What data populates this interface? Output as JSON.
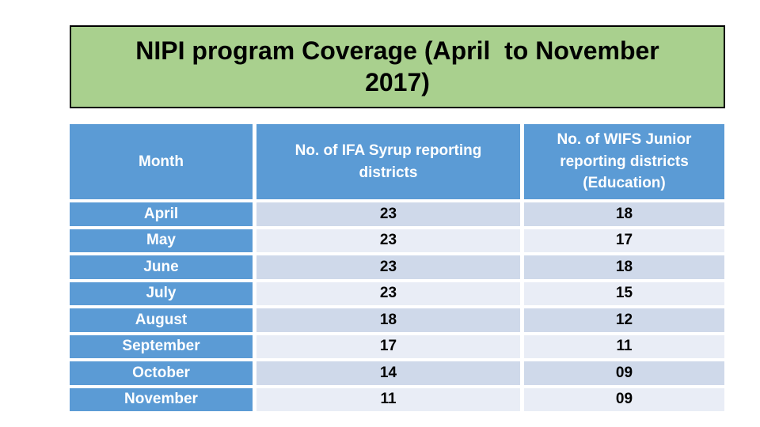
{
  "theme": {
    "page-bg": "#ffffff",
    "title-bg": "#a9d08e",
    "title-border": "#000000",
    "title-text": "#000000",
    "table-blue": "#5b9bd5",
    "row-dark": "#cfd9ea",
    "row-light": "#e9edf6"
  },
  "title": {
    "lines": [
      "NIPI program Coverage (April  to November",
      "2017)"
    ]
  },
  "table": {
    "columns": [
      "Month",
      "No. of IFA Syrup reporting districts",
      "No. of WIFS Junior reporting districts (Education)"
    ],
    "rows": [
      {
        "month": "April",
        "ifa": "23",
        "wifs": "18"
      },
      {
        "month": "May",
        "ifa": "23",
        "wifs": "17"
      },
      {
        "month": "June",
        "ifa": "23",
        "wifs": "18"
      },
      {
        "month": "July",
        "ifa": "23",
        "wifs": "15"
      },
      {
        "month": "August",
        "ifa": "18",
        "wifs": "12"
      },
      {
        "month": "September",
        "ifa": "17",
        "wifs": "11"
      },
      {
        "month": "October",
        "ifa": "14",
        "wifs": "09"
      },
      {
        "month": "November",
        "ifa": "11",
        "wifs": "09"
      }
    ]
  }
}
